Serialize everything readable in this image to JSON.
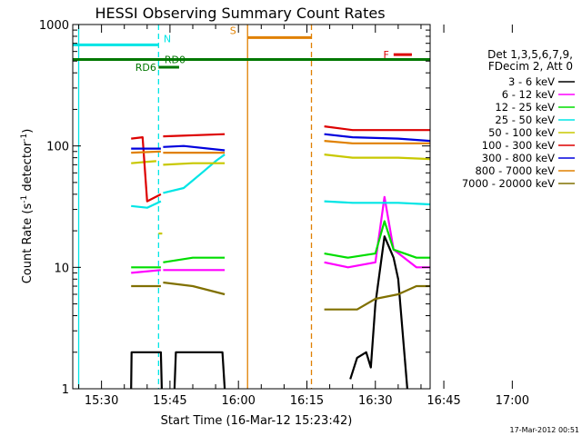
{
  "chart_data": {
    "type": "line",
    "title": "HESSI Observing Summary Count Rates",
    "xlabel": "Start Time (16-Mar-12 15:23:42)",
    "ylabel_prefix": "Count Rate (s",
    "ylabel_sup": "-1",
    "ylabel_suffix": " detector",
    "ylabel_sup2": "-1",
    "ylabel_end": ")",
    "footer": "17-Mar-2012 00:51",
    "x_range_min": [
      23.7,
      102
    ],
    "y_log": true,
    "ylim": [
      1,
      1000
    ],
    "x_ticks": [
      {
        "m": 30,
        "label": "15:30"
      },
      {
        "m": 45,
        "label": "15:45"
      },
      {
        "m": 60,
        "label": "16:00"
      },
      {
        "m": 75,
        "label": "16:15"
      },
      {
        "m": 90,
        "label": "16:30"
      },
      {
        "m": 105,
        "label": "16:45"
      },
      {
        "m": 120,
        "label": "17:00"
      }
    ],
    "y_ticks": [
      {
        "v": 1,
        "label": "1"
      },
      {
        "v": 10,
        "label": "10"
      },
      {
        "v": 100,
        "label": "100"
      },
      {
        "v": 1000,
        "label": "1000"
      }
    ],
    "legend_header": [
      "Det 1,3,5,6,7,9,",
      "FDecim 2, Att 0"
    ],
    "series": [
      {
        "name": "3 - 6 keV",
        "color": "#000000",
        "segments": [
          [
            [
              36.5,
              1
            ],
            [
              36.6,
              2
            ],
            [
              43,
              2
            ],
            [
              43.2,
              1
            ]
          ],
          [
            [
              46,
              1
            ],
            [
              46.3,
              2
            ],
            [
              56.5,
              2
            ],
            [
              57,
              1
            ]
          ],
          [
            [
              84.5,
              1.2
            ],
            [
              86,
              1.8
            ],
            [
              88,
              2
            ],
            [
              89,
              1.5
            ],
            [
              90,
              5
            ],
            [
              92,
              18
            ],
            [
              94,
              12
            ],
            [
              95,
              8
            ],
            [
              97,
              1
            ]
          ]
        ]
      },
      {
        "name": "6 - 12 keV",
        "color": "#ff00ff",
        "segments": [
          [
            [
              36.5,
              9
            ],
            [
              43,
              9.5
            ]
          ],
          [
            [
              43.5,
              9.5
            ],
            [
              57,
              9.5
            ]
          ],
          [
            [
              78.8,
              11
            ],
            [
              84,
              10
            ],
            [
              90,
              11
            ],
            [
              92,
              38
            ],
            [
              94,
              14
            ],
            [
              99,
              10
            ],
            [
              104,
              10
            ]
          ]
        ]
      },
      {
        "name": "12 - 25 keV",
        "color": "#00dd00",
        "segments": [
          [
            [
              36.5,
              10
            ],
            [
              43,
              10
            ]
          ],
          [
            [
              43.5,
              11
            ],
            [
              50,
              12
            ],
            [
              57,
              12
            ]
          ],
          [
            [
              78.8,
              13
            ],
            [
              84,
              12
            ],
            [
              90,
              13
            ],
            [
              92,
              24
            ],
            [
              94,
              14
            ],
            [
              99,
              12
            ],
            [
              104,
              12
            ]
          ]
        ]
      },
      {
        "name": "25 - 50 keV",
        "color": "#00e5e5",
        "segments": [
          [
            [
              36.5,
              32
            ],
            [
              40,
              31
            ],
            [
              43,
              35
            ]
          ],
          [
            [
              43.5,
              41
            ],
            [
              48,
              45
            ],
            [
              52,
              60
            ],
            [
              55,
              75
            ],
            [
              57,
              85
            ]
          ],
          [
            [
              78.8,
              35
            ],
            [
              85,
              34
            ],
            [
              95,
              34
            ],
            [
              104,
              33
            ]
          ]
        ]
      },
      {
        "name": "50 - 100 keV",
        "color": "#c8c800",
        "segments": [
          [
            [
              36.5,
              72
            ],
            [
              40,
              74
            ],
            [
              42,
              75
            ]
          ],
          [
            [
              42.5,
              19
            ],
            [
              43.3,
              19
            ]
          ],
          [
            [
              43.5,
              70
            ],
            [
              50,
              72
            ],
            [
              57,
              72
            ]
          ],
          [
            [
              78.8,
              85
            ],
            [
              85,
              80
            ],
            [
              95,
              80
            ],
            [
              104,
              78
            ]
          ]
        ]
      },
      {
        "name": "100 - 300 keV",
        "color": "#dd0000",
        "segments": [
          [
            [
              36.5,
              115
            ],
            [
              39,
              118
            ],
            [
              40,
              35
            ],
            [
              43,
              40
            ]
          ],
          [
            [
              43.5,
              120
            ],
            [
              57,
              125
            ]
          ],
          [
            [
              78.8,
              145
            ],
            [
              85,
              135
            ],
            [
              95,
              135
            ],
            [
              104,
              135
            ]
          ]
        ]
      },
      {
        "name": "300 - 800 keV",
        "color": "#0000dd",
        "segments": [
          [
            [
              36.5,
              95
            ],
            [
              43,
              95
            ]
          ],
          [
            [
              43.5,
              98
            ],
            [
              48,
              100
            ],
            [
              57,
              92
            ]
          ],
          [
            [
              78.8,
              125
            ],
            [
              85,
              118
            ],
            [
              95,
              115
            ],
            [
              104,
              110
            ]
          ]
        ]
      },
      {
        "name": "800 - 7000 keV",
        "color": "#e08000",
        "segments": [
          [
            [
              36.5,
              88
            ],
            [
              43,
              90
            ]
          ],
          [
            [
              43.5,
              88
            ],
            [
              57,
              88
            ]
          ],
          [
            [
              78.8,
              110
            ],
            [
              85,
              105
            ],
            [
              95,
              105
            ],
            [
              104,
              105
            ]
          ]
        ]
      },
      {
        "name": "7000 - 20000 keV",
        "color": "#807000",
        "segments": [
          [
            [
              36.5,
              7
            ],
            [
              43,
              7
            ]
          ],
          [
            [
              43.5,
              7.5
            ],
            [
              50,
              7
            ],
            [
              57,
              6
            ]
          ],
          [
            [
              78.8,
              4.5
            ],
            [
              86,
              4.5
            ],
            [
              90,
              5.5
            ],
            [
              95,
              6
            ],
            [
              99,
              7
            ],
            [
              104,
              7
            ]
          ]
        ]
      }
    ],
    "flag_bars": [
      {
        "label": "N",
        "color": "#00e5e5",
        "y": 680,
        "segments": [
          [
            23.7,
            42.5
          ],
          [
            104.5,
            119.5
          ]
        ]
      },
      {
        "label": "S",
        "color": "#e08000",
        "y": 780,
        "segments": [
          [
            62,
            76
          ]
        ]
      },
      {
        "label": "F",
        "color": "#dd0000",
        "y": 565,
        "segments": [
          [
            94,
            98
          ]
        ]
      },
      {
        "label": "RD0",
        "color": "#007700",
        "y": 515,
        "segments": [
          [
            23.7,
            120
          ]
        ]
      },
      {
        "label": "RD6",
        "color": "#007700",
        "y": 445,
        "segments": [
          [
            42.5,
            47
          ]
        ]
      }
    ],
    "vlines": [
      {
        "m": 25,
        "color": "#00e5e5",
        "dash": false
      },
      {
        "m": 42.5,
        "color": "#00e5e5",
        "dash": true
      },
      {
        "m": 104.5,
        "color": "#00e5e5",
        "dash": false
      },
      {
        "m": 120,
        "color": "#00e5e5",
        "dash": true
      },
      {
        "m": 62,
        "color": "#e08000",
        "dash": false
      },
      {
        "m": 76,
        "color": "#e08000",
        "dash": true
      }
    ]
  }
}
